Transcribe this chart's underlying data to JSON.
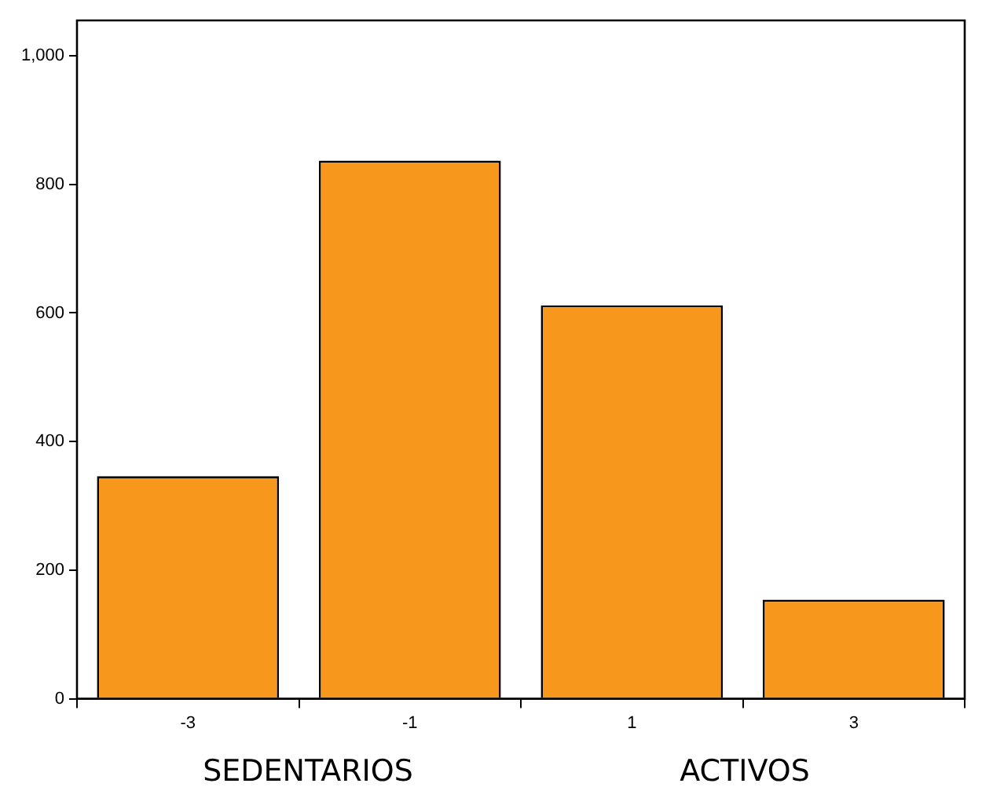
{
  "chart_data": {
    "type": "bar",
    "categories": [
      "-3",
      "-1",
      "1",
      "3"
    ],
    "values": [
      346,
      837,
      612,
      154
    ],
    "color": "#f7981d",
    "ylim": [
      0,
      1055
    ],
    "yticks": [
      0,
      200,
      400,
      600,
      800,
      {
        "value": 1000,
        "label": "1,000"
      }
    ],
    "grid": false,
    "legend": false,
    "annotations": [
      "SEDENTARIOS",
      "ACTIVOS"
    ]
  }
}
